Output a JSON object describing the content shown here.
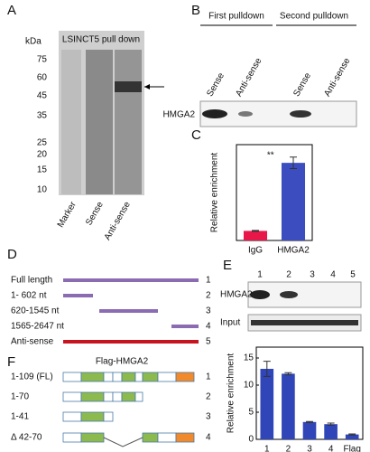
{
  "panels": {
    "A": {
      "label": "A",
      "unit": "kDa",
      "title": "LSINCT5 pull down",
      "markers": [
        "75",
        "60",
        "45",
        "35",
        "25",
        "20",
        "15",
        "10"
      ],
      "lanes": [
        "Marker",
        "Sense",
        "Anti-sense"
      ]
    },
    "B": {
      "label": "B",
      "groups": [
        "First pulldown",
        "Second pulldown"
      ],
      "lanes": [
        "Sense",
        "Anti-sense",
        "Sense",
        "Anti-sense"
      ],
      "row": "HMGA2"
    },
    "C": {
      "label": "C"
    },
    "D": {
      "label": "D",
      "rows": [
        {
          "name": "Full length",
          "number": "1"
        },
        {
          "name": "1- 602 nt",
          "number": "2"
        },
        {
          "name": "620-1545 nt",
          "number": "3"
        },
        {
          "name": "1565-2647 nt",
          "number": "4"
        },
        {
          "name": "Anti-sense",
          "number": "5"
        }
      ]
    },
    "E": {
      "label": "E",
      "lanes": [
        "1",
        "2",
        "3",
        "4",
        "5"
      ],
      "rows": [
        "HMGA2",
        "Input"
      ]
    },
    "F": {
      "label": "F",
      "title": "Flag-HMGA2",
      "rows": [
        {
          "name": "1-109 (FL)",
          "number": "1"
        },
        {
          "name": "1-70",
          "number": "2"
        },
        {
          "name": "1-41",
          "number": "3"
        },
        {
          "name": "Δ 42-70",
          "number": "4"
        }
      ]
    }
  },
  "chart_data": [
    {
      "type": "bar",
      "ylabel": "Relative enrichment",
      "categories": [
        "IgG",
        "HMGA2"
      ],
      "values": [
        1,
        8.1
      ],
      "errors": [
        0.05,
        0.6
      ],
      "colors": [
        "#e8174a",
        "#3b4dbf"
      ],
      "ylim": [
        0,
        10
      ],
      "annotation": "**"
    },
    {
      "type": "bar",
      "ylabel": "Relative enrichment",
      "categories": [
        "1",
        "2",
        "3",
        "4",
        "Flag"
      ],
      "values": [
        13,
        12.1,
        3.2,
        2.8,
        0.9
      ],
      "errors": [
        1.4,
        0.2,
        0.1,
        0.2,
        0.1
      ],
      "color": "#2f45b8",
      "ylim": [
        0,
        17
      ],
      "yticks": [
        0,
        5,
        10,
        15
      ]
    }
  ]
}
